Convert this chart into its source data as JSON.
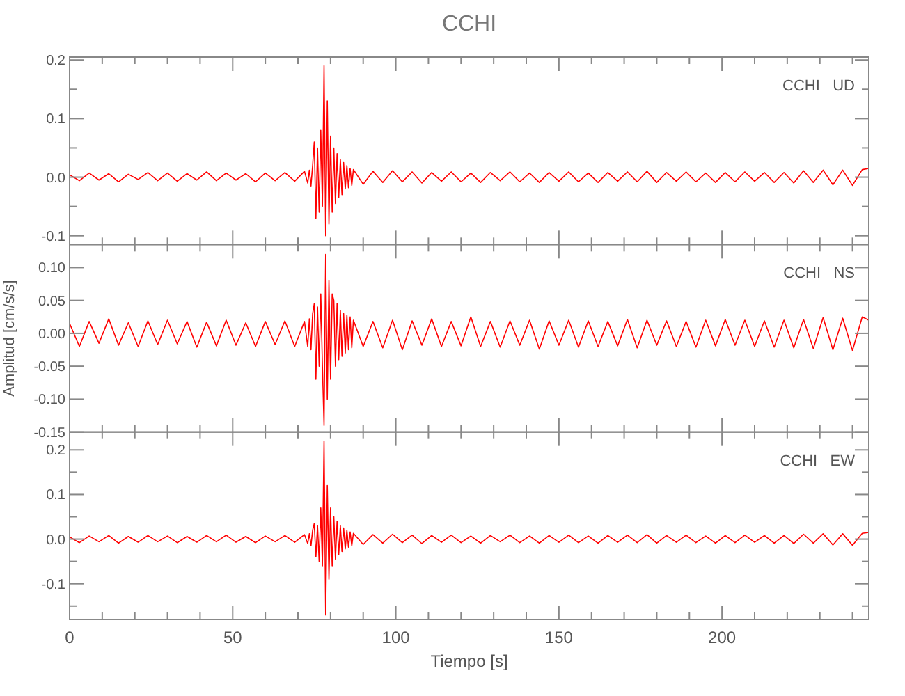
{
  "chart_data": [
    {
      "type": "line",
      "title": "CCHI",
      "annotations": [
        "CCHI   UD"
      ],
      "xlim": [
        0,
        245
      ],
      "ylim": [
        -0.115,
        0.205
      ],
      "tick_labels": "y",
      "grid": false,
      "xticks": [
        0,
        {
          "value": 10,
          "label": null
        },
        {
          "value": 20,
          "label": null
        },
        {
          "value": 30,
          "label": null
        },
        {
          "value": 40,
          "label": null
        },
        50,
        {
          "value": 60,
          "label": null
        },
        {
          "value": 70,
          "label": null
        },
        {
          "value": 80,
          "label": null
        },
        {
          "value": 90,
          "label": null
        },
        100,
        {
          "value": 110,
          "label": null
        },
        {
          "value": 120,
          "label": null
        },
        {
          "value": 130,
          "label": null
        },
        {
          "value": 140,
          "label": null
        },
        150,
        {
          "value": 160,
          "label": null
        },
        {
          "value": 170,
          "label": null
        },
        {
          "value": 180,
          "label": null
        },
        {
          "value": 190,
          "label": null
        },
        200,
        {
          "value": 210,
          "label": null
        },
        {
          "value": 220,
          "label": null
        },
        {
          "value": 230,
          "label": null
        },
        {
          "value": 240,
          "label": null
        }
      ],
      "yticks": [
        {
          "value": -0.1,
          "label": "-0.1"
        },
        {
          "value": -0.05,
          "label": null
        },
        {
          "value": 0,
          "label": "0.0"
        },
        {
          "value": 0.05,
          "label": null
        },
        0.1,
        {
          "value": 0.15,
          "label": null
        },
        0.2
      ],
      "x": [
        0,
        3,
        6,
        9,
        12,
        15,
        18,
        21,
        24,
        27,
        30,
        33,
        36,
        39,
        42,
        45,
        48,
        51,
        54,
        57,
        60,
        63,
        66,
        69,
        72,
        73,
        73.5,
        74,
        74.5,
        75,
        75.5,
        76,
        76.5,
        77,
        77.5,
        78,
        78.5,
        79,
        79.5,
        80,
        80.5,
        81,
        81.5,
        82,
        82.5,
        83,
        83.5,
        84,
        84.5,
        85,
        85.5,
        86,
        86.5,
        87,
        90,
        93,
        96,
        99,
        102,
        105,
        108,
        111,
        114,
        117,
        120,
        123,
        126,
        129,
        132,
        135,
        138,
        141,
        144,
        147,
        150,
        153,
        156,
        159,
        162,
        165,
        168,
        171,
        174,
        177,
        180,
        183,
        186,
        189,
        192,
        195,
        198,
        201,
        204,
        207,
        210,
        213,
        216,
        219,
        222,
        225,
        228,
        231,
        234,
        237,
        240,
        243,
        245
      ],
      "series": [
        {
          "color": "#ff0000",
          "values": [
            0.004,
            -0.006,
            0.007,
            -0.005,
            0.006,
            -0.008,
            0.005,
            -0.004,
            0.008,
            -0.006,
            0.007,
            -0.007,
            0.006,
            -0.005,
            0.009,
            -0.006,
            0.007,
            -0.005,
            0.006,
            -0.008,
            0.007,
            -0.006,
            0.008,
            -0.007,
            0.01,
            -0.01,
            0.012,
            -0.015,
            0.02,
            0.06,
            -0.07,
            0.05,
            -0.06,
            0.08,
            -0.05,
            0.19,
            -0.1,
            0.13,
            -0.08,
            0.07,
            -0.06,
            0.05,
            -0.045,
            0.04,
            -0.035,
            0.03,
            -0.03,
            0.025,
            -0.02,
            0.02,
            -0.018,
            0.015,
            -0.014,
            0.013,
            -0.012,
            0.01,
            -0.009,
            0.011,
            -0.008,
            0.009,
            -0.01,
            0.008,
            -0.007,
            0.009,
            -0.008,
            0.007,
            -0.009,
            0.008,
            -0.006,
            0.009,
            -0.008,
            0.007,
            -0.009,
            0.008,
            -0.007,
            0.009,
            -0.008,
            0.007,
            -0.009,
            0.008,
            -0.007,
            0.009,
            -0.008,
            0.01,
            -0.009,
            0.008,
            -0.007,
            0.009,
            -0.008,
            0.007,
            -0.009,
            0.008,
            -0.008,
            0.009,
            -0.007,
            0.008,
            -0.009,
            0.008,
            -0.01,
            0.011,
            -0.009,
            0.012,
            -0.013,
            0.012,
            -0.014,
            0.013,
            0.015
          ]
        }
      ]
    },
    {
      "type": "line",
      "ylabel": "Amplitud [cm/s/s]",
      "annotations": [
        "CCHI   NS"
      ],
      "xlim": [
        0,
        245
      ],
      "ylim": [
        -0.15,
        0.135
      ],
      "tick_labels": "y",
      "grid": false,
      "xticks": [
        0,
        {
          "value": 10,
          "label": null
        },
        {
          "value": 20,
          "label": null
        },
        {
          "value": 30,
          "label": null
        },
        {
          "value": 40,
          "label": null
        },
        50,
        {
          "value": 60,
          "label": null
        },
        {
          "value": 70,
          "label": null
        },
        {
          "value": 80,
          "label": null
        },
        {
          "value": 90,
          "label": null
        },
        100,
        {
          "value": 110,
          "label": null
        },
        {
          "value": 120,
          "label": null
        },
        {
          "value": 130,
          "label": null
        },
        {
          "value": 140,
          "label": null
        },
        150,
        {
          "value": 160,
          "label": null
        },
        {
          "value": 170,
          "label": null
        },
        {
          "value": 180,
          "label": null
        },
        {
          "value": 190,
          "label": null
        },
        200,
        {
          "value": 210,
          "label": null
        },
        {
          "value": 220,
          "label": null
        },
        {
          "value": 230,
          "label": null
        },
        {
          "value": 240,
          "label": null
        }
      ],
      "yticks": [
        {
          "value": -0.15,
          "label": "-0.15"
        },
        {
          "value": -0.1,
          "label": "-0.10"
        },
        {
          "value": -0.05,
          "label": "-0.05"
        },
        {
          "value": 0,
          "label": "0.00"
        },
        0.05,
        {
          "value": 0.1,
          "label": "0.10"
        }
      ],
      "x": [
        0,
        3,
        6,
        9,
        12,
        15,
        18,
        21,
        24,
        27,
        30,
        33,
        36,
        39,
        42,
        45,
        48,
        51,
        54,
        57,
        60,
        63,
        66,
        69,
        72,
        73,
        73.5,
        74,
        74.5,
        75,
        75.5,
        76,
        76.5,
        77,
        77.5,
        78,
        78.5,
        79,
        79.5,
        80,
        80.5,
        81,
        81.5,
        82,
        82.5,
        83,
        83.5,
        84,
        84.5,
        85,
        85.5,
        86,
        86.5,
        87,
        90,
        93,
        96,
        99,
        102,
        105,
        108,
        111,
        114,
        117,
        120,
        123,
        126,
        129,
        132,
        135,
        138,
        141,
        144,
        147,
        150,
        153,
        156,
        159,
        162,
        165,
        168,
        171,
        174,
        177,
        180,
        183,
        186,
        189,
        192,
        195,
        198,
        201,
        204,
        207,
        210,
        213,
        216,
        219,
        222,
        225,
        228,
        231,
        234,
        237,
        240,
        243,
        245
      ],
      "series": [
        {
          "color": "#ff0000",
          "values": [
            0.015,
            -0.02,
            0.018,
            -0.015,
            0.022,
            -0.018,
            0.016,
            -0.02,
            0.019,
            -0.017,
            0.02,
            -0.016,
            0.018,
            -0.021,
            0.017,
            -0.019,
            0.02,
            -0.018,
            0.016,
            -0.02,
            0.018,
            -0.017,
            0.019,
            -0.02,
            0.018,
            -0.02,
            0.022,
            -0.025,
            0.03,
            0.045,
            -0.07,
            0.04,
            -0.05,
            0.06,
            -0.05,
            -0.14,
            0.12,
            -0.1,
            0.08,
            -0.07,
            0.06,
            0.05,
            -0.05,
            0.045,
            -0.04,
            0.035,
            -0.035,
            0.03,
            -0.03,
            0.028,
            -0.025,
            0.025,
            -0.022,
            0.02,
            -0.02,
            0.018,
            -0.022,
            0.02,
            -0.025,
            0.019,
            -0.018,
            0.022,
            -0.02,
            0.018,
            -0.019,
            0.025,
            -0.02,
            0.018,
            -0.021,
            0.019,
            -0.018,
            0.02,
            -0.024,
            0.019,
            -0.018,
            0.02,
            -0.021,
            0.019,
            -0.02,
            0.018,
            -0.019,
            0.021,
            -0.022,
            0.02,
            -0.018,
            0.019,
            -0.02,
            0.018,
            -0.021,
            0.02,
            -0.019,
            0.021,
            -0.018,
            0.02,
            -0.02,
            0.019,
            -0.021,
            0.02,
            -0.022,
            0.021,
            -0.023,
            0.024,
            -0.025,
            0.023,
            -0.026,
            0.025,
            0.02
          ]
        }
      ]
    },
    {
      "type": "line",
      "xlabel": "Tiempo [s]",
      "annotations": [
        "CCHI   EW"
      ],
      "xlim": [
        0,
        245
      ],
      "ylim": [
        -0.18,
        0.24
      ],
      "grid": false,
      "xticks": [
        0,
        {
          "value": 10,
          "label": null
        },
        {
          "value": 20,
          "label": null
        },
        {
          "value": 30,
          "label": null
        },
        {
          "value": 40,
          "label": null
        },
        50,
        {
          "value": 60,
          "label": null
        },
        {
          "value": 70,
          "label": null
        },
        {
          "value": 80,
          "label": null
        },
        {
          "value": 90,
          "label": null
        },
        100,
        {
          "value": 110,
          "label": null
        },
        {
          "value": 120,
          "label": null
        },
        {
          "value": 130,
          "label": null
        },
        {
          "value": 140,
          "label": null
        },
        150,
        {
          "value": 160,
          "label": null
        },
        {
          "value": 170,
          "label": null
        },
        {
          "value": 180,
          "label": null
        },
        {
          "value": 190,
          "label": null
        },
        200,
        {
          "value": 210,
          "label": null
        },
        {
          "value": 220,
          "label": null
        },
        {
          "value": 230,
          "label": null
        },
        {
          "value": 240,
          "label": null
        }
      ],
      "yticks": [
        {
          "value": -0.15,
          "label": null
        },
        {
          "value": -0.1,
          "label": "-0.1"
        },
        {
          "value": -0.05,
          "label": null
        },
        {
          "value": 0,
          "label": "0.0"
        },
        {
          "value": 0.05,
          "label": null
        },
        0.1,
        {
          "value": 0.15,
          "label": null
        },
        0.2
      ],
      "x": [
        0,
        3,
        6,
        9,
        12,
        15,
        18,
        21,
        24,
        27,
        30,
        33,
        36,
        39,
        42,
        45,
        48,
        51,
        54,
        57,
        60,
        63,
        66,
        69,
        72,
        73,
        73.5,
        74,
        74.5,
        75,
        75.5,
        76,
        76.5,
        77,
        77.5,
        78,
        78.5,
        79,
        79.5,
        80,
        80.5,
        81,
        81.5,
        82,
        82.5,
        83,
        83.5,
        84,
        84.5,
        85,
        85.5,
        86,
        86.5,
        87,
        90,
        93,
        96,
        99,
        102,
        105,
        108,
        111,
        114,
        117,
        120,
        123,
        126,
        129,
        132,
        135,
        138,
        141,
        144,
        147,
        150,
        153,
        156,
        159,
        162,
        165,
        168,
        171,
        174,
        177,
        180,
        183,
        186,
        189,
        192,
        195,
        198,
        201,
        204,
        207,
        210,
        213,
        216,
        219,
        222,
        225,
        228,
        231,
        234,
        237,
        240,
        243,
        245
      ],
      "series": [
        {
          "color": "#ff0000",
          "values": [
            0.005,
            -0.008,
            0.007,
            -0.006,
            0.008,
            -0.009,
            0.006,
            -0.007,
            0.008,
            -0.006,
            0.007,
            -0.008,
            0.006,
            -0.007,
            0.008,
            -0.006,
            0.009,
            -0.007,
            0.006,
            -0.008,
            0.007,
            -0.006,
            0.008,
            -0.007,
            0.01,
            -0.01,
            0.012,
            -0.015,
            0.02,
            0.035,
            -0.04,
            0.03,
            -0.05,
            0.07,
            -0.06,
            0.22,
            -0.17,
            0.12,
            -0.09,
            0.07,
            -0.06,
            0.05,
            -0.045,
            0.04,
            -0.035,
            0.03,
            -0.028,
            0.025,
            -0.022,
            0.02,
            -0.018,
            0.016,
            -0.015,
            0.013,
            -0.012,
            0.01,
            -0.009,
            0.011,
            -0.008,
            0.009,
            -0.01,
            0.008,
            -0.007,
            0.009,
            -0.008,
            0.007,
            -0.009,
            0.008,
            -0.006,
            0.009,
            -0.008,
            0.007,
            -0.009,
            0.008,
            -0.007,
            0.009,
            -0.008,
            0.007,
            -0.009,
            0.008,
            -0.007,
            0.009,
            -0.008,
            0.01,
            -0.009,
            0.008,
            -0.007,
            0.009,
            -0.008,
            0.007,
            -0.009,
            0.008,
            -0.008,
            0.009,
            -0.007,
            0.008,
            -0.009,
            0.008,
            -0.01,
            0.011,
            -0.009,
            0.012,
            -0.013,
            0.012,
            -0.014,
            0.013,
            0.015
          ]
        }
      ]
    }
  ]
}
